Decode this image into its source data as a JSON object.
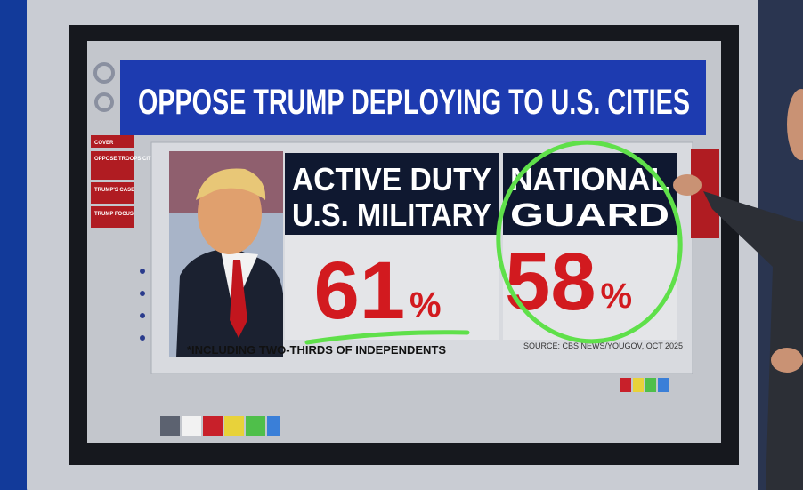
{
  "header": {
    "title": "OPPOSE TRUMP DEPLOYING TO U.S. CITIES"
  },
  "sidebar": {
    "items": [
      "COVER",
      "OPPOSE TROOPS CITIES",
      "TRUMP'S CASE",
      "TRUMP FOCUS"
    ]
  },
  "panels": [
    {
      "label_lines": [
        "ACTIVE DUTY",
        "U.S. MILITARY"
      ],
      "percent": "61",
      "unit": "%"
    },
    {
      "label_lines": [
        "NATIONAL",
        "GUARD"
      ],
      "percent": "58",
      "unit": "%"
    }
  ],
  "footnote": "*INCLUDING TWO-THIRDS OF INDEPENDENTS",
  "source": "SOURCE: CBS NEWS/YOUGOV, OCT 2025"
}
